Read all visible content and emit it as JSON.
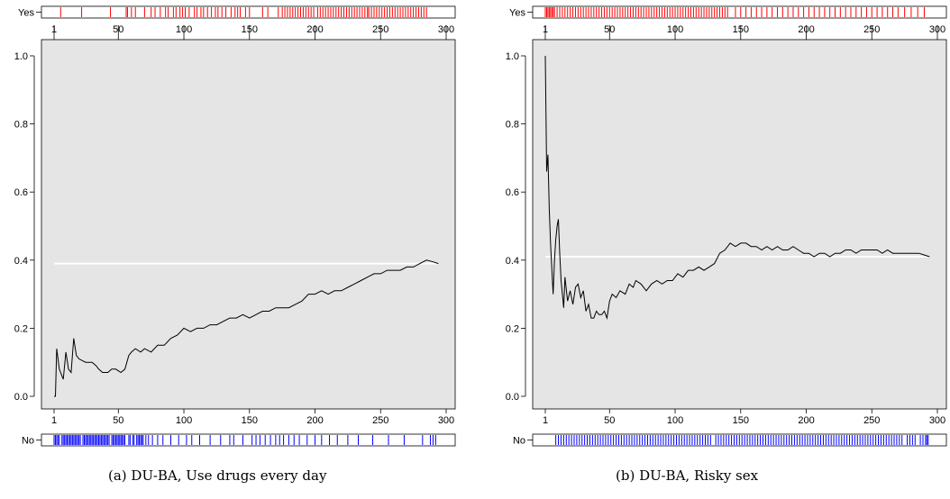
{
  "chart_data": [
    {
      "type": "line",
      "caption": "(a) DU-BA, Use drugs every day",
      "rug_top_label": "Yes",
      "rug_bottom_label": "No",
      "xlim": [
        1,
        300
      ],
      "ylim": [
        0,
        1
      ],
      "x_ticks": [
        1,
        50,
        100,
        150,
        200,
        250,
        300
      ],
      "y_ticks": [
        "0.0",
        "0.2",
        "0.4",
        "0.6",
        "0.8",
        "1.0"
      ],
      "reference_y": 0.39,
      "colors": {
        "panel": "#e5e5e5",
        "line": "#000000",
        "reference": "#ffffff",
        "yes_rug": "#ff0000",
        "no_rug": "#0000ff"
      },
      "series_points": [
        [
          1,
          0.0
        ],
        [
          2,
          0.0
        ],
        [
          3,
          0.14
        ],
        [
          5,
          0.08
        ],
        [
          7,
          0.06
        ],
        [
          8,
          0.05
        ],
        [
          10,
          0.13
        ],
        [
          12,
          0.08
        ],
        [
          14,
          0.07
        ],
        [
          16,
          0.17
        ],
        [
          18,
          0.12
        ],
        [
          20,
          0.11
        ],
        [
          25,
          0.1
        ],
        [
          30,
          0.1
        ],
        [
          33,
          0.09
        ],
        [
          35,
          0.08
        ],
        [
          38,
          0.07
        ],
        [
          42,
          0.07
        ],
        [
          45,
          0.08
        ],
        [
          48,
          0.08
        ],
        [
          52,
          0.07
        ],
        [
          55,
          0.08
        ],
        [
          58,
          0.12
        ],
        [
          60,
          0.13
        ],
        [
          63,
          0.14
        ],
        [
          67,
          0.13
        ],
        [
          70,
          0.14
        ],
        [
          75,
          0.13
        ],
        [
          80,
          0.15
        ],
        [
          85,
          0.15
        ],
        [
          90,
          0.17
        ],
        [
          95,
          0.18
        ],
        [
          100,
          0.2
        ],
        [
          105,
          0.19
        ],
        [
          110,
          0.2
        ],
        [
          115,
          0.2
        ],
        [
          120,
          0.21
        ],
        [
          125,
          0.21
        ],
        [
          130,
          0.22
        ],
        [
          135,
          0.23
        ],
        [
          140,
          0.23
        ],
        [
          145,
          0.24
        ],
        [
          150,
          0.23
        ],
        [
          155,
          0.24
        ],
        [
          160,
          0.25
        ],
        [
          165,
          0.25
        ],
        [
          170,
          0.26
        ],
        [
          175,
          0.26
        ],
        [
          180,
          0.26
        ],
        [
          185,
          0.27
        ],
        [
          190,
          0.28
        ],
        [
          195,
          0.3
        ],
        [
          200,
          0.3
        ],
        [
          205,
          0.31
        ],
        [
          210,
          0.3
        ],
        [
          215,
          0.31
        ],
        [
          220,
          0.31
        ],
        [
          225,
          0.32
        ],
        [
          230,
          0.33
        ],
        [
          235,
          0.34
        ],
        [
          240,
          0.35
        ],
        [
          245,
          0.36
        ],
        [
          250,
          0.36
        ],
        [
          255,
          0.37
        ],
        [
          260,
          0.37
        ],
        [
          265,
          0.37
        ],
        [
          270,
          0.38
        ],
        [
          275,
          0.38
        ],
        [
          280,
          0.39
        ],
        [
          285,
          0.4
        ],
        [
          290,
          0.395
        ],
        [
          294,
          0.39
        ]
      ],
      "yes_cases": [
        6,
        22,
        44,
        56,
        57,
        60,
        63,
        70,
        75,
        78,
        82,
        86,
        88,
        92,
        94,
        97,
        99,
        101,
        104,
        108,
        110,
        113,
        115,
        118,
        121,
        124,
        126,
        129,
        132,
        136,
        139,
        141,
        143,
        147,
        150,
        160,
        164,
        172,
        175,
        177,
        179,
        181,
        183,
        185,
        187,
        189,
        191,
        193,
        195,
        197,
        199,
        202,
        204,
        206,
        208,
        210,
        212,
        214,
        216,
        218,
        220,
        222,
        224,
        226,
        228,
        230,
        232,
        234,
        236,
        238,
        240,
        241,
        243,
        245,
        247,
        249,
        251,
        253,
        255,
        257,
        259,
        261,
        263,
        265,
        267,
        269,
        271,
        273,
        275,
        277,
        279,
        281,
        283,
        285
      ],
      "no_cases": [
        1,
        2,
        3,
        4,
        5,
        7,
        8,
        9,
        10,
        11,
        12,
        13,
        14,
        15,
        16,
        17,
        18,
        19,
        20,
        21,
        23,
        24,
        25,
        26,
        27,
        28,
        29,
        30,
        31,
        32,
        33,
        34,
        35,
        36,
        37,
        38,
        39,
        40,
        41,
        42,
        43,
        45,
        46,
        47,
        48,
        49,
        50,
        51,
        52,
        53,
        54,
        55,
        58,
        59,
        61,
        62,
        64,
        65,
        66,
        67,
        68,
        69,
        71,
        73,
        76,
        80,
        84,
        90,
        96,
        102,
        106,
        112,
        120,
        128,
        135,
        138,
        145,
        152,
        155,
        158,
        162,
        166,
        170,
        173,
        176,
        180,
        184,
        188,
        194,
        200,
        205,
        211,
        217,
        225,
        233,
        244,
        256,
        268,
        282,
        288,
        290,
        292
      ]
    },
    {
      "type": "line",
      "caption": "(b) DU-BA, Risky sex",
      "rug_top_label": "Yes",
      "rug_bottom_label": "No",
      "xlim": [
        1,
        300
      ],
      "ylim": [
        0,
        1
      ],
      "x_ticks": [
        1,
        50,
        100,
        150,
        200,
        250,
        300
      ],
      "y_ticks": [
        "0.0",
        "0.2",
        "0.4",
        "0.6",
        "0.8",
        "1.0"
      ],
      "reference_y": 0.41,
      "colors": {
        "panel": "#e5e5e5",
        "line": "#000000",
        "reference": "#ffffff",
        "yes_rug": "#ff0000",
        "no_rug": "#0000ff"
      },
      "series_points": [
        [
          1,
          1.0
        ],
        [
          2,
          0.66
        ],
        [
          3,
          0.71
        ],
        [
          4,
          0.55
        ],
        [
          5,
          0.45
        ],
        [
          6,
          0.37
        ],
        [
          7,
          0.3
        ],
        [
          8,
          0.4
        ],
        [
          9,
          0.46
        ],
        [
          10,
          0.5
        ],
        [
          11,
          0.52
        ],
        [
          12,
          0.42
        ],
        [
          13,
          0.34
        ],
        [
          15,
          0.26
        ],
        [
          16,
          0.35
        ],
        [
          18,
          0.28
        ],
        [
          20,
          0.31
        ],
        [
          22,
          0.27
        ],
        [
          24,
          0.32
        ],
        [
          26,
          0.33
        ],
        [
          28,
          0.29
        ],
        [
          30,
          0.31
        ],
        [
          32,
          0.25
        ],
        [
          34,
          0.27
        ],
        [
          36,
          0.23
        ],
        [
          38,
          0.23
        ],
        [
          40,
          0.25
        ],
        [
          42,
          0.24
        ],
        [
          44,
          0.24
        ],
        [
          46,
          0.25
        ],
        [
          48,
          0.23
        ],
        [
          50,
          0.28
        ],
        [
          52,
          0.3
        ],
        [
          55,
          0.29
        ],
        [
          58,
          0.31
        ],
        [
          62,
          0.3
        ],
        [
          65,
          0.33
        ],
        [
          68,
          0.32
        ],
        [
          70,
          0.34
        ],
        [
          74,
          0.33
        ],
        [
          78,
          0.31
        ],
        [
          82,
          0.33
        ],
        [
          86,
          0.34
        ],
        [
          90,
          0.33
        ],
        [
          94,
          0.34
        ],
        [
          98,
          0.34
        ],
        [
          102,
          0.36
        ],
        [
          106,
          0.35
        ],
        [
          110,
          0.37
        ],
        [
          114,
          0.37
        ],
        [
          118,
          0.38
        ],
        [
          122,
          0.37
        ],
        [
          126,
          0.38
        ],
        [
          130,
          0.39
        ],
        [
          134,
          0.42
        ],
        [
          138,
          0.43
        ],
        [
          142,
          0.45
        ],
        [
          146,
          0.44
        ],
        [
          150,
          0.45
        ],
        [
          154,
          0.45
        ],
        [
          158,
          0.44
        ],
        [
          162,
          0.44
        ],
        [
          166,
          0.43
        ],
        [
          170,
          0.44
        ],
        [
          174,
          0.43
        ],
        [
          178,
          0.44
        ],
        [
          182,
          0.43
        ],
        [
          186,
          0.43
        ],
        [
          190,
          0.44
        ],
        [
          194,
          0.43
        ],
        [
          198,
          0.42
        ],
        [
          202,
          0.42
        ],
        [
          206,
          0.41
        ],
        [
          210,
          0.42
        ],
        [
          214,
          0.42
        ],
        [
          218,
          0.41
        ],
        [
          222,
          0.42
        ],
        [
          226,
          0.42
        ],
        [
          230,
          0.43
        ],
        [
          234,
          0.43
        ],
        [
          238,
          0.42
        ],
        [
          242,
          0.43
        ],
        [
          246,
          0.43
        ],
        [
          250,
          0.43
        ],
        [
          254,
          0.43
        ],
        [
          258,
          0.42
        ],
        [
          262,
          0.43
        ],
        [
          266,
          0.42
        ],
        [
          270,
          0.42
        ],
        [
          274,
          0.42
        ],
        [
          278,
          0.42
        ],
        [
          282,
          0.42
        ],
        [
          286,
          0.42
        ],
        [
          290,
          0.415
        ],
        [
          294,
          0.41
        ]
      ],
      "yes_cases": [
        1,
        2,
        3,
        4,
        5,
        6,
        7,
        8,
        10,
        12,
        14,
        16,
        18,
        20,
        22,
        24,
        26,
        28,
        30,
        32,
        34,
        36,
        38,
        40,
        42,
        44,
        46,
        48,
        50,
        52,
        54,
        56,
        58,
        60,
        62,
        64,
        66,
        68,
        70,
        72,
        74,
        76,
        78,
        80,
        82,
        84,
        86,
        88,
        90,
        92,
        94,
        96,
        98,
        100,
        102,
        104,
        106,
        108,
        110,
        112,
        114,
        116,
        118,
        120,
        122,
        124,
        126,
        128,
        130,
        132,
        134,
        136,
        138,
        140,
        146,
        150,
        154,
        158,
        162,
        166,
        170,
        174,
        178,
        182,
        186,
        190,
        194,
        198,
        202,
        206,
        210,
        214,
        218,
        222,
        226,
        230,
        234,
        238,
        242,
        246,
        250,
        254,
        258,
        262,
        266,
        270,
        275,
        280,
        285,
        290
      ],
      "no_cases": [
        9,
        11,
        13,
        15,
        17,
        19,
        21,
        23,
        25,
        27,
        29,
        31,
        33,
        35,
        37,
        39,
        41,
        43,
        45,
        47,
        49,
        51,
        53,
        55,
        57,
        59,
        61,
        63,
        65,
        67,
        69,
        71,
        73,
        75,
        77,
        79,
        81,
        83,
        85,
        87,
        89,
        91,
        93,
        95,
        97,
        99,
        101,
        103,
        105,
        107,
        109,
        111,
        113,
        115,
        117,
        119,
        121,
        123,
        125,
        127,
        131,
        133,
        135,
        137,
        139,
        141,
        143,
        145,
        147,
        149,
        151,
        153,
        155,
        157,
        159,
        161,
        163,
        165,
        167,
        169,
        171,
        173,
        175,
        177,
        179,
        181,
        183,
        185,
        187,
        189,
        191,
        193,
        195,
        197,
        199,
        201,
        203,
        205,
        207,
        209,
        211,
        213,
        215,
        217,
        219,
        221,
        223,
        225,
        227,
        229,
        231,
        233,
        235,
        237,
        239,
        241,
        243,
        245,
        247,
        249,
        251,
        253,
        255,
        257,
        259,
        261,
        263,
        265,
        267,
        269,
        271,
        273,
        277,
        279,
        281,
        283,
        287,
        289,
        291,
        292,
        293
      ]
    }
  ]
}
